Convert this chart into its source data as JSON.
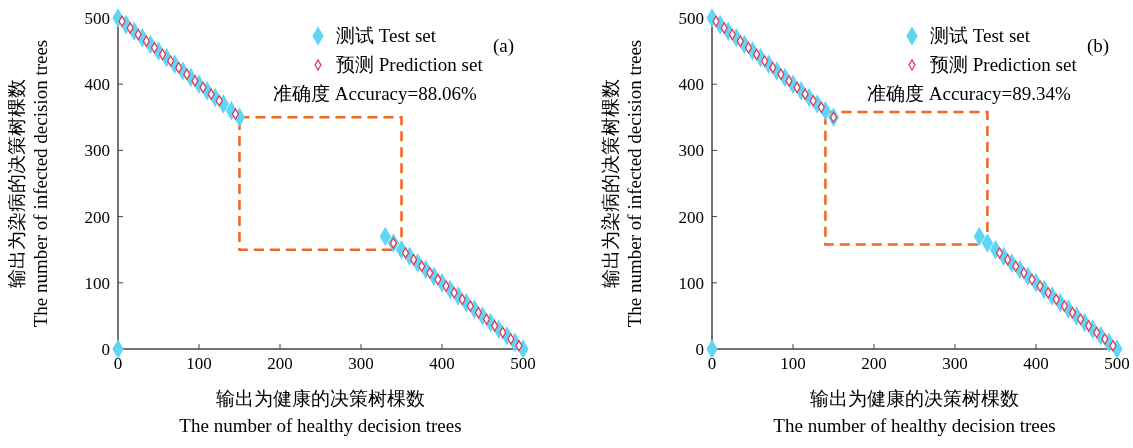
{
  "chart_data": [
    {
      "type": "scatter",
      "xlabel": "输出为健康的决策树棵数\nThe number of healthy decision trees",
      "ylabel": "输出为染病的决策树棵数\nThe number of infected decision trees",
      "xlim": [
        0,
        500
      ],
      "ylim": [
        0,
        500
      ],
      "xticks": [
        0,
        100,
        200,
        300,
        400,
        500
      ],
      "yticks": [
        0,
        100,
        200,
        300,
        400,
        500
      ],
      "grid": false,
      "legend": "top right",
      "marker": "diamond",
      "annotations": [
        "准确度 Accuracy=88.06%",
        "(a)"
      ],
      "series": [
        {
          "name": "测试 Test set",
          "color": "#5fd6f5",
          "x": [
            0,
            10,
            20,
            30,
            40,
            50,
            60,
            70,
            80,
            90,
            100,
            110,
            120,
            130,
            140,
            150,
            330,
            340,
            350,
            360,
            370,
            380,
            390,
            400,
            410,
            420,
            430,
            440,
            450,
            460,
            470,
            480,
            490,
            500,
            0
          ],
          "values": [
            500,
            490,
            480,
            470,
            460,
            450,
            440,
            430,
            420,
            410,
            400,
            390,
            380,
            370,
            360,
            350,
            170,
            160,
            150,
            140,
            130,
            120,
            110,
            100,
            90,
            80,
            70,
            60,
            50,
            40,
            30,
            20,
            10,
            0,
            0
          ]
        },
        {
          "name": "预测 Prediction set",
          "color": "#e8304f",
          "x": [
            5,
            15,
            25,
            35,
            45,
            55,
            65,
            75,
            85,
            95,
            105,
            115,
            125,
            145,
            340,
            355,
            365,
            375,
            385,
            395,
            405,
            415,
            425,
            435,
            445,
            455,
            465,
            475,
            485,
            495
          ],
          "values": [
            495,
            485,
            475,
            465,
            455,
            445,
            435,
            425,
            415,
            405,
            395,
            385,
            375,
            355,
            160,
            145,
            135,
            125,
            115,
            105,
            95,
            85,
            75,
            65,
            55,
            45,
            35,
            25,
            15,
            5
          ]
        }
      ]
    },
    {
      "type": "scatter",
      "xlabel": "输出为健康的决策树棵数\nThe number of healthy decision trees",
      "ylabel": "输出为染病的决策树棵数\nThe number of infected decision trees",
      "xlim": [
        0,
        500
      ],
      "ylim": [
        0,
        500
      ],
      "xticks": [
        0,
        100,
        200,
        300,
        400,
        500
      ],
      "yticks": [
        0,
        100,
        200,
        300,
        400,
        500
      ],
      "grid": false,
      "legend": "top right",
      "marker": "diamond",
      "annotations": [
        "准确度 Accuracy=89.34%",
        "(b)"
      ],
      "series": [
        {
          "name": "测试 Test set",
          "color": "#5fd6f5",
          "x": [
            0,
            10,
            20,
            30,
            40,
            50,
            60,
            70,
            80,
            90,
            100,
            110,
            120,
            130,
            140,
            150,
            330,
            340,
            350,
            360,
            370,
            380,
            390,
            400,
            410,
            420,
            430,
            440,
            450,
            460,
            470,
            480,
            490,
            500,
            0
          ],
          "values": [
            500,
            490,
            480,
            470,
            460,
            450,
            440,
            430,
            420,
            410,
            400,
            390,
            380,
            370,
            360,
            350,
            170,
            160,
            150,
            140,
            130,
            120,
            110,
            100,
            90,
            80,
            70,
            60,
            50,
            40,
            30,
            20,
            10,
            0,
            0
          ]
        },
        {
          "name": "预测 Prediction set",
          "color": "#e8304f",
          "x": [
            5,
            15,
            25,
            35,
            45,
            55,
            65,
            75,
            85,
            95,
            105,
            115,
            125,
            135,
            150,
            355,
            365,
            375,
            385,
            395,
            405,
            415,
            425,
            435,
            445,
            455,
            465,
            475,
            485,
            495
          ],
          "values": [
            495,
            485,
            475,
            465,
            455,
            445,
            435,
            425,
            415,
            405,
            395,
            385,
            375,
            365,
            350,
            145,
            135,
            125,
            115,
            105,
            95,
            85,
            75,
            65,
            55,
            45,
            35,
            25,
            15,
            5
          ]
        }
      ]
    }
  ]
}
